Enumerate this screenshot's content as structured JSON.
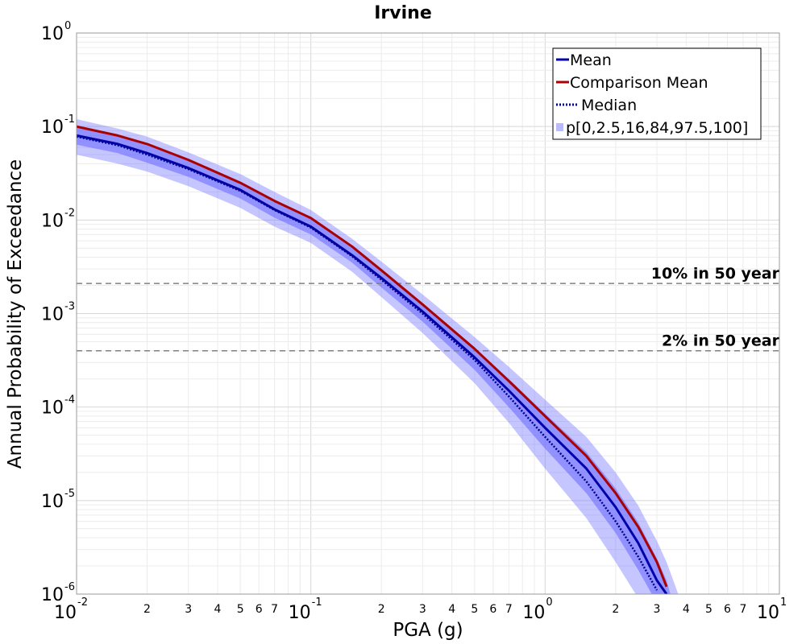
{
  "chart_data": {
    "type": "line",
    "title": "Irvine",
    "xlabel": "PGA (g)",
    "ylabel": "Annual Probability of Exceedance",
    "xscale": "log",
    "yscale": "log",
    "xlim": [
      0.01,
      10
    ],
    "ylim": [
      1e-06,
      1
    ],
    "grid": true,
    "legend_position": "top-right",
    "x": [
      0.01,
      0.015,
      0.02,
      0.03,
      0.05,
      0.07,
      0.1,
      0.15,
      0.2,
      0.3,
      0.5,
      0.7,
      1.0,
      1.5,
      2.0,
      2.5,
      3.0,
      3.3,
      3.7
    ],
    "series": [
      {
        "name": "Mean",
        "color": "#0000aa",
        "style": "solid",
        "values": [
          0.08,
          0.065,
          0.052,
          0.036,
          0.021,
          0.013,
          0.0085,
          0.0042,
          0.0024,
          0.00105,
          0.00034,
          0.00015,
          6e-05,
          2.2e-05,
          8.5e-06,
          3.5e-06,
          1.4e-06,
          1e-06,
          null
        ]
      },
      {
        "name": "Comparison Mean",
        "color": "#aa0000",
        "style": "solid",
        "values": [
          0.1,
          0.08,
          0.065,
          0.044,
          0.025,
          0.016,
          0.0105,
          0.0052,
          0.0029,
          0.00125,
          0.00042,
          0.00019,
          8e-05,
          3e-05,
          1.2e-05,
          5.2e-06,
          2.2e-06,
          1.2e-06,
          null
        ]
      },
      {
        "name": "Median",
        "color": "#00008b",
        "style": "dotted",
        "values": [
          0.078,
          0.063,
          0.05,
          0.035,
          0.0205,
          0.0128,
          0.0083,
          0.0041,
          0.0023,
          0.001,
          0.00032,
          0.00013,
          4.8e-05,
          1.6e-05,
          6e-06,
          2.5e-06,
          1.1e-06,
          null,
          null
        ]
      }
    ],
    "percentile_bands": {
      "name": "p[0,2.5,16,84,97.5,100]",
      "color": "#6666ff",
      "outer_lower": [
        0.05,
        0.04,
        0.033,
        0.023,
        0.0135,
        0.0085,
        0.0057,
        0.0028,
        0.0015,
        0.00062,
        0.00018,
        6.8e-05,
        2.2e-05,
        6.5e-06,
        2.2e-06,
        9e-07,
        null,
        null,
        null
      ],
      "outer_upper": [
        0.12,
        0.095,
        0.078,
        0.053,
        0.031,
        0.02,
        0.0128,
        0.0063,
        0.0036,
        0.0016,
        0.00056,
        0.00027,
        0.00012,
        4.8e-05,
        2e-05,
        8.8e-06,
        3.7e-06,
        2.2e-06,
        1e-06
      ],
      "inner_lower": [
        0.064,
        0.052,
        0.041,
        0.029,
        0.017,
        0.0106,
        0.007,
        0.0035,
        0.0019,
        0.00082,
        0.00025,
        0.0001,
        3.6e-05,
        1.2e-05,
        4.5e-06,
        1.8e-06,
        8e-07,
        null,
        null
      ],
      "inner_upper": [
        0.097,
        0.078,
        0.063,
        0.043,
        0.025,
        0.0158,
        0.0102,
        0.005,
        0.0029,
        0.00129,
        0.00043,
        0.0002,
        8.5e-05,
        3.3e-05,
        1.35e-05,
        5.8e-06,
        2.4e-06,
        1.4e-06,
        null
      ]
    },
    "reference_lines": [
      {
        "label": "10% in 50 year",
        "y": 0.0021
      },
      {
        "label": "2% in 50 year",
        "y": 0.0004
      }
    ],
    "x_ticks": {
      "decades": [
        {
          "base": "10",
          "exp": "-2"
        },
        {
          "base": "10",
          "exp": "-1"
        },
        {
          "base": "10",
          "exp": "0"
        },
        {
          "base": "10",
          "exp": "1"
        }
      ],
      "minor_labels": [
        "2",
        "3",
        "4",
        "5",
        "6",
        "7"
      ]
    },
    "y_ticks": {
      "decades": [
        {
          "base": "10",
          "exp": "0"
        },
        {
          "base": "10",
          "exp": "-1"
        },
        {
          "base": "10",
          "exp": "-2"
        },
        {
          "base": "10",
          "exp": "-3"
        },
        {
          "base": "10",
          "exp": "-4"
        },
        {
          "base": "10",
          "exp": "-5"
        },
        {
          "base": "10",
          "exp": "-6"
        }
      ]
    }
  }
}
